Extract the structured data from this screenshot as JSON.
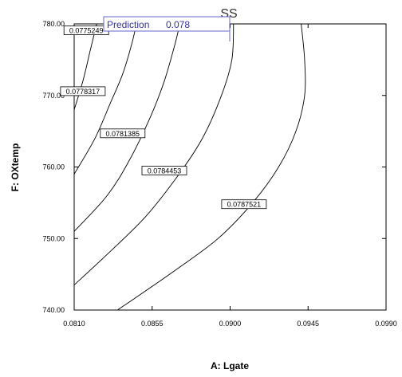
{
  "chart_data": {
    "type": "contour",
    "title": "SS",
    "xlabel": "A: Lgate",
    "ylabel": "F: OXtemp",
    "xlim": [
      0.081,
      0.099
    ],
    "ylim": [
      740,
      780
    ],
    "x_ticks": [
      "0.0810",
      "0.0855",
      "0.0900",
      "0.0945",
      "0.0990"
    ],
    "y_ticks": [
      "740.00",
      "750.00",
      "760.00",
      "770.00",
      "780.00"
    ],
    "prediction": {
      "label": "Prediction",
      "value": "0.078"
    },
    "contours": [
      {
        "label": "0.0775249",
        "points": [
          [
            0.0823,
            780
          ],
          [
            0.0819,
            776
          ],
          [
            0.0815,
            772
          ],
          [
            0.081,
            768
          ]
        ]
      },
      {
        "label": "0.0778317",
        "points": [
          [
            0.0846,
            780
          ],
          [
            0.0843,
            777
          ],
          [
            0.0838,
            773
          ],
          [
            0.0831,
            769
          ],
          [
            0.0822,
            764
          ],
          [
            0.081,
            759
          ]
        ]
      },
      {
        "label": "0.0781385",
        "points": [
          [
            0.0871,
            780
          ],
          [
            0.0868,
            777
          ],
          [
            0.0862,
            772
          ],
          [
            0.0854,
            767
          ],
          [
            0.0842,
            761
          ],
          [
            0.0829,
            756
          ],
          [
            0.081,
            751
          ]
        ]
      },
      {
        "label": "0.0784453",
        "points": [
          [
            0.0902,
            780
          ],
          [
            0.0901,
            775
          ],
          [
            0.0895,
            770
          ],
          [
            0.0884,
            764
          ],
          [
            0.0869,
            758.5
          ],
          [
            0.0851,
            753
          ],
          [
            0.083,
            748
          ],
          [
            0.081,
            743.5
          ]
        ]
      },
      {
        "label": "0.0787521",
        "points": [
          [
            0.0941,
            780
          ],
          [
            0.0943,
            775
          ],
          [
            0.0943,
            770
          ],
          [
            0.0938,
            765
          ],
          [
            0.0928,
            760
          ],
          [
            0.0913,
            755
          ],
          [
            0.0893,
            750
          ],
          [
            0.0868,
            745.5
          ],
          [
            0.0835,
            740
          ]
        ]
      }
    ],
    "contour_labels": [
      {
        "text": "0.0775249",
        "x": 0.0817,
        "y": 779.1
      },
      {
        "text": "0.0778317",
        "x": 0.0815,
        "y": 770.6
      },
      {
        "text": "0.0781385",
        "x": 0.0838,
        "y": 764.7
      },
      {
        "text": "0.0784453",
        "x": 0.0862,
        "y": 759.5
      },
      {
        "text": "0.0787521",
        "x": 0.0908,
        "y": 754.8
      }
    ]
  }
}
